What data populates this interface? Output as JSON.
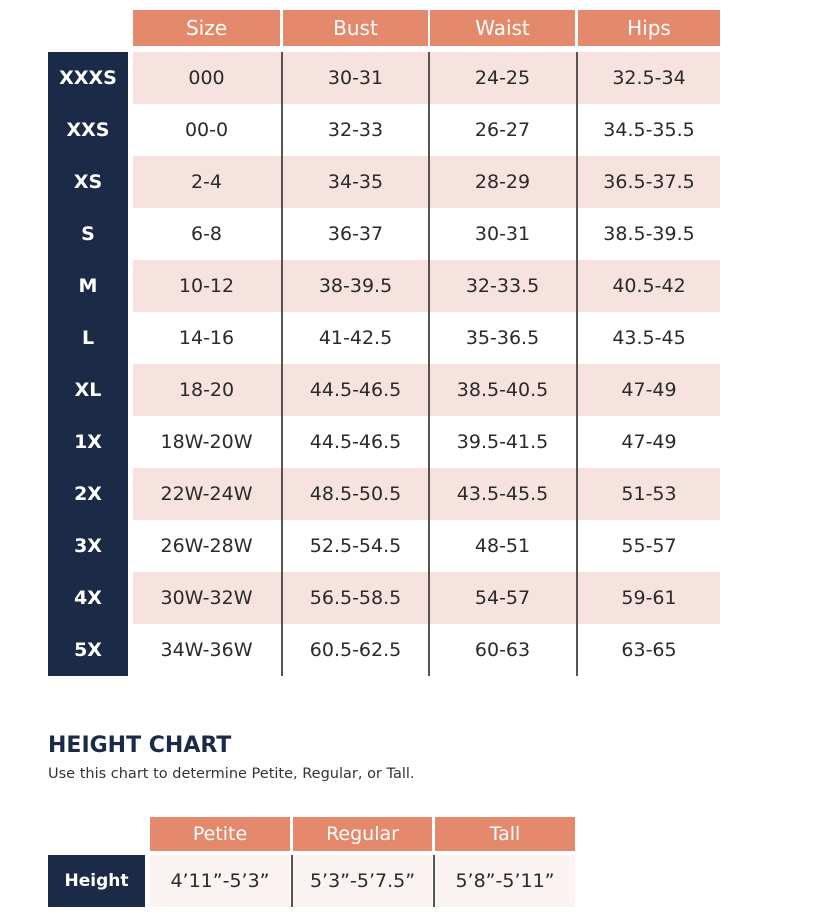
{
  "size_table": {
    "columns": [
      "Size",
      "Bust",
      "Waist",
      "Hips"
    ],
    "rows": [
      {
        "label": "XXXS",
        "cells": [
          "000",
          "30-31",
          "24-25",
          "32.5-34"
        ]
      },
      {
        "label": "XXS",
        "cells": [
          "00-0",
          "32-33",
          "26-27",
          "34.5-35.5"
        ]
      },
      {
        "label": "XS",
        "cells": [
          "2-4",
          "34-35",
          "28-29",
          "36.5-37.5"
        ]
      },
      {
        "label": "S",
        "cells": [
          "6-8",
          "36-37",
          "30-31",
          "38.5-39.5"
        ]
      },
      {
        "label": "M",
        "cells": [
          "10-12",
          "38-39.5",
          "32-33.5",
          "40.5-42"
        ]
      },
      {
        "label": "L",
        "cells": [
          "14-16",
          "41-42.5",
          "35-36.5",
          "43.5-45"
        ]
      },
      {
        "label": "XL",
        "cells": [
          "18-20",
          "44.5-46.5",
          "38.5-40.5",
          "47-49"
        ]
      },
      {
        "label": "1X",
        "cells": [
          "18W-20W",
          "44.5-46.5",
          "39.5-41.5",
          "47-49"
        ]
      },
      {
        "label": "2X",
        "cells": [
          "22W-24W",
          "48.5-50.5",
          "43.5-45.5",
          "51-53"
        ]
      },
      {
        "label": "3X",
        "cells": [
          "26W-28W",
          "52.5-54.5",
          "48-51",
          "55-57"
        ]
      },
      {
        "label": "4X",
        "cells": [
          "30W-32W",
          "56.5-58.5",
          "54-57",
          "59-61"
        ]
      },
      {
        "label": "5X",
        "cells": [
          "34W-36W",
          "60.5-62.5",
          "60-63",
          "63-65"
        ]
      }
    ]
  },
  "height_chart": {
    "title": "HEIGHT CHART",
    "subtitle": "Use this chart to determine Petite, Regular, or Tall.",
    "columns": [
      "Petite",
      "Regular",
      "Tall"
    ],
    "rows": [
      {
        "label": "Height",
        "cells": [
          "4’11”-5’3”",
          "5’3”-5’7.5”",
          "5’8”-5’11”"
        ]
      }
    ]
  }
}
